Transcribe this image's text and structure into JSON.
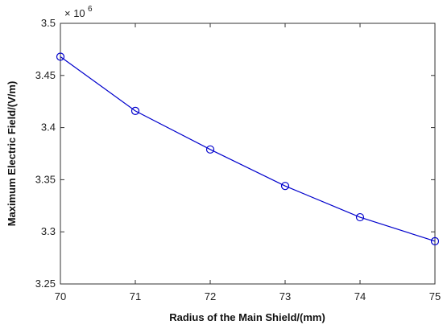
{
  "chart_data": {
    "type": "line",
    "title": "",
    "xlabel": "Radius of the Main Shield/(mm)",
    "ylabel": "Maximum Electric Field/(V/m)",
    "x": [
      70,
      71,
      72,
      73,
      74,
      75
    ],
    "series": [
      {
        "values": [
          3.468,
          3.416,
          3.379,
          3.344,
          3.314,
          3.291
        ],
        "color": "#0000cc",
        "marker": "circle"
      }
    ],
    "xlim": [
      70,
      75
    ],
    "ylim": [
      3.25,
      3.5
    ],
    "xticks": [
      "70",
      "71",
      "72",
      "73",
      "74",
      "75"
    ],
    "yticks": [
      "3.25",
      "3.3",
      "3.35",
      "3.4",
      "3.45",
      "3.5"
    ],
    "y_multiplier": {
      "base": "× 10",
      "exponent": "6"
    },
    "grid": false,
    "legend": "none"
  }
}
